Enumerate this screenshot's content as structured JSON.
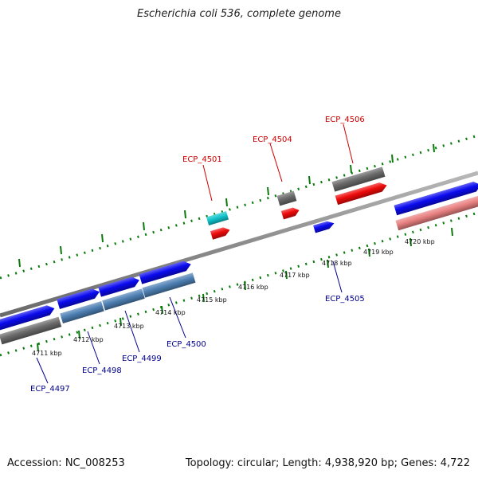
{
  "title": "Escherichia coli 536, complete genome",
  "footer": {
    "accession": "Accession: NC_008253",
    "summary": "Topology: circular; Length: 4,938,920 bp; Genes: 4,722"
  },
  "colors": {
    "forward_cds": "#0a0aee",
    "reverse_cds": "#ee0a0a",
    "cyan_cds": "#11c4cc",
    "grey_feature": "#6a6a6a",
    "steel_cds": "#4d7fb3",
    "pink_feature": "#e88080",
    "backbone": "#8c8c8c",
    "tick": "#0a7a0a",
    "label_forward": "#00008b",
    "label_reverse": "#cc0000"
  },
  "scale_labels": [
    "4711 kbp",
    "4712 kbp",
    "4713 kbp",
    "4714 kbp",
    "4715 kbp",
    "4716 kbp",
    "4717 kbp",
    "4718 kbp",
    "4719 kbp",
    "4720 kbp"
  ],
  "gene_labels": {
    "top": [
      "ECP_4501",
      "ECP_4504",
      "ECP_4506"
    ],
    "bottom": [
      "ECP_4497",
      "ECP_4498",
      "ECP_4499",
      "ECP_4500",
      "ECP_4505"
    ]
  }
}
